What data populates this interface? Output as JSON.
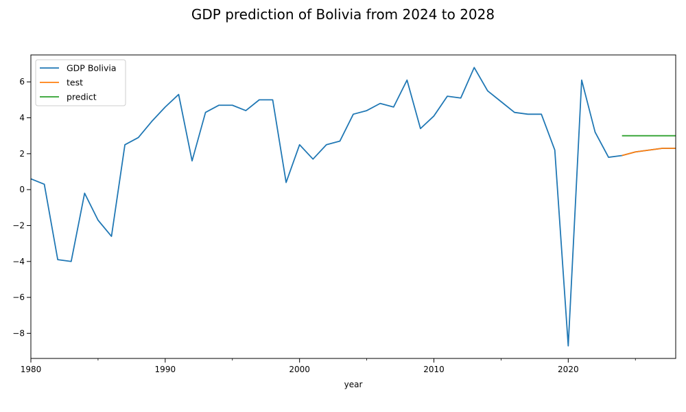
{
  "chart_data": {
    "type": "line",
    "title": "GDP prediction of Bolivia from 2024 to 2028",
    "xlabel": "year",
    "ylabel": "",
    "xlim": [
      1980,
      2028
    ],
    "ylim": [
      -9.4,
      7.5
    ],
    "x_major_ticks": [
      1980,
      1990,
      2000,
      2010,
      2020
    ],
    "x_minor_ticks": [
      1985,
      1995,
      2005,
      2015,
      2025
    ],
    "y_ticks": [
      -8,
      -6,
      -4,
      -2,
      0,
      2,
      4,
      6
    ],
    "x_tick_labels": [
      "1980",
      "1990",
      "2000",
      "2010",
      "2020"
    ],
    "y_tick_labels": [
      "−8",
      "−6",
      "−4",
      "−2",
      "0",
      "2",
      "4",
      "6"
    ],
    "grid": false,
    "legend_position": "upper-left",
    "series": [
      {
        "name": "GDP Bolivia",
        "color": "#1f77b4",
        "x": [
          1980,
          1981,
          1982,
          1983,
          1984,
          1985,
          1986,
          1987,
          1988,
          1989,
          1990,
          1991,
          1992,
          1993,
          1994,
          1995,
          1996,
          1997,
          1998,
          1999,
          2000,
          2001,
          2002,
          2003,
          2004,
          2005,
          2006,
          2007,
          2008,
          2009,
          2010,
          2011,
          2012,
          2013,
          2014,
          2015,
          2016,
          2017,
          2018,
          2019,
          2020,
          2021,
          2022,
          2023,
          2024,
          2025,
          2026,
          2027,
          2028
        ],
        "y": [
          0.6,
          0.3,
          -3.9,
          -4.0,
          -0.2,
          -1.7,
          -2.6,
          2.5,
          2.9,
          3.8,
          4.6,
          5.3,
          1.6,
          4.3,
          4.7,
          4.7,
          4.4,
          5.0,
          5.0,
          0.4,
          2.5,
          1.7,
          2.5,
          2.7,
          4.2,
          4.4,
          4.8,
          4.6,
          6.1,
          3.4,
          4.1,
          5.2,
          5.1,
          6.8,
          5.5,
          4.9,
          4.3,
          4.2,
          4.2,
          2.2,
          -8.7,
          6.1,
          3.2,
          1.8,
          1.9,
          2.1,
          2.2,
          2.3,
          2.3
        ]
      },
      {
        "name": "test",
        "color": "#ff7f0e",
        "x": [
          2024,
          2025,
          2026,
          2027,
          2028
        ],
        "y": [
          1.9,
          2.1,
          2.2,
          2.3,
          2.3
        ]
      },
      {
        "name": "predict",
        "color": "#2ca02c",
        "x": [
          2024,
          2025,
          2026,
          2027,
          2028
        ],
        "y": [
          3.0,
          3.0,
          3.0,
          3.0,
          3.0
        ]
      }
    ]
  }
}
